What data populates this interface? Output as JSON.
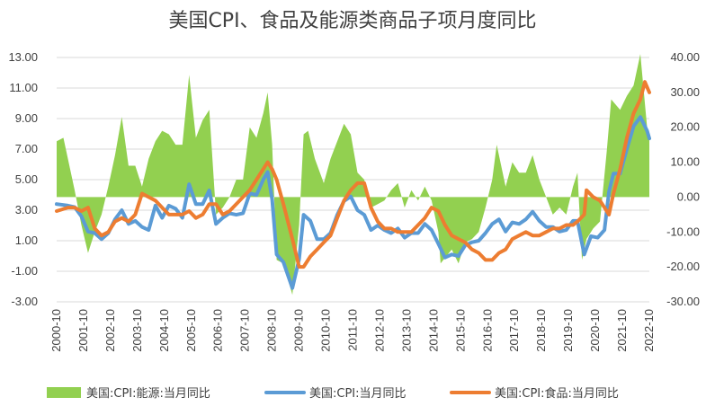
{
  "chart_data": {
    "type": "area+line",
    "title": "美国CPI、食品及能源类商品子项月度同比",
    "x_start": "2000-10",
    "x_end": "2022-10",
    "x_ticks": [
      "2000-10",
      "2001-10",
      "2002-10",
      "2003-10",
      "2004-10",
      "2005-10",
      "2006-10",
      "2007-10",
      "2008-10",
      "2009-10",
      "2010-10",
      "2011-10",
      "2012-10",
      "2013-10",
      "2014-10",
      "2015-10",
      "2016-10",
      "2017-10",
      "2018-10",
      "2019-10",
      "2020-10",
      "2021-10",
      "2022-10"
    ],
    "left_axis": {
      "min": -3,
      "max": 13,
      "step": 2,
      "ticks": [
        "-3.00",
        "-1.00",
        "1.00",
        "3.00",
        "5.00",
        "7.00",
        "9.00",
        "11.00",
        "13.00"
      ]
    },
    "right_axis": {
      "min": -30,
      "max": 40,
      "step": 10,
      "ticks": [
        "-30.00",
        "-20.00",
        "-10.00",
        "0.00",
        "10.00",
        "20.00",
        "30.00",
        "40.00"
      ]
    },
    "grid": "horizontal",
    "legend_position": "bottom",
    "colors": {
      "energy": "#92d050",
      "cpi": "#5b9bd5",
      "food": "#ed7d31"
    },
    "series": [
      {
        "name": "美国:CPI:能源:当月同比",
        "axis": "right",
        "kind": "area",
        "points": [
          [
            "2000-10",
            16
          ],
          [
            "2001-01",
            17
          ],
          [
            "2001-06",
            2
          ],
          [
            "2001-09",
            -8
          ],
          [
            "2001-12",
            -16
          ],
          [
            "2002-03",
            -10
          ],
          [
            "2002-06",
            -5
          ],
          [
            "2002-09",
            3
          ],
          [
            "2002-12",
            12
          ],
          [
            "2003-03",
            23
          ],
          [
            "2003-06",
            9
          ],
          [
            "2003-09",
            9
          ],
          [
            "2003-12",
            3
          ],
          [
            "2004-03",
            11
          ],
          [
            "2004-06",
            16
          ],
          [
            "2004-09",
            19
          ],
          [
            "2004-12",
            18
          ],
          [
            "2005-03",
            15
          ],
          [
            "2005-06",
            15
          ],
          [
            "2005-09",
            35
          ],
          [
            "2005-12",
            17
          ],
          [
            "2006-03",
            22
          ],
          [
            "2006-06",
            25
          ],
          [
            "2006-09",
            -5
          ],
          [
            "2006-12",
            -3
          ],
          [
            "2007-03",
            0
          ],
          [
            "2007-06",
            5
          ],
          [
            "2007-09",
            5
          ],
          [
            "2007-12",
            20
          ],
          [
            "2008-03",
            17
          ],
          [
            "2008-06",
            24
          ],
          [
            "2008-08",
            30
          ],
          [
            "2008-10",
            15
          ],
          [
            "2008-12",
            -18
          ],
          [
            "2009-03",
            -19
          ],
          [
            "2009-07",
            -28
          ],
          [
            "2009-10",
            -8
          ],
          [
            "2009-12",
            18
          ],
          [
            "2010-02",
            19
          ],
          [
            "2010-05",
            11
          ],
          [
            "2010-09",
            4
          ],
          [
            "2010-12",
            11
          ],
          [
            "2011-03",
            16
          ],
          [
            "2011-06",
            21
          ],
          [
            "2011-09",
            18
          ],
          [
            "2011-12",
            7
          ],
          [
            "2012-03",
            5
          ],
          [
            "2012-06",
            -3
          ],
          [
            "2012-09",
            -2
          ],
          [
            "2012-12",
            -1
          ],
          [
            "2013-03",
            2
          ],
          [
            "2013-06",
            4
          ],
          [
            "2013-09",
            -3
          ],
          [
            "2013-12",
            2
          ],
          [
            "2014-03",
            -1
          ],
          [
            "2014-06",
            3
          ],
          [
            "2014-09",
            -1
          ],
          [
            "2014-12",
            -10
          ],
          [
            "2015-01",
            -19
          ],
          [
            "2015-06",
            -15
          ],
          [
            "2015-09",
            -19
          ],
          [
            "2015-12",
            -13
          ],
          [
            "2016-03",
            -12
          ],
          [
            "2016-06",
            -10
          ],
          [
            "2016-09",
            -3
          ],
          [
            "2016-12",
            5
          ],
          [
            "2017-02",
            15
          ],
          [
            "2017-06",
            3
          ],
          [
            "2017-09",
            10
          ],
          [
            "2017-12",
            7
          ],
          [
            "2018-03",
            7
          ],
          [
            "2018-06",
            12
          ],
          [
            "2018-09",
            5
          ],
          [
            "2018-12",
            0
          ],
          [
            "2019-03",
            -5
          ],
          [
            "2019-06",
            -3
          ],
          [
            "2019-09",
            -5
          ],
          [
            "2019-12",
            3
          ],
          [
            "2020-02",
            7
          ],
          [
            "2020-04",
            -18
          ],
          [
            "2020-06",
            -12
          ],
          [
            "2020-09",
            -9
          ],
          [
            "2020-12",
            -7
          ],
          [
            "2021-03",
            13
          ],
          [
            "2021-05",
            28
          ],
          [
            "2021-09",
            25
          ],
          [
            "2021-12",
            29
          ],
          [
            "2022-03",
            32
          ],
          [
            "2022-06",
            41
          ],
          [
            "2022-09",
            20
          ],
          [
            "2022-10",
            18
          ]
        ]
      },
      {
        "name": "美国:CPI:当月同比",
        "axis": "left",
        "kind": "line",
        "points": [
          [
            "2000-10",
            3.4
          ],
          [
            "2001-03",
            3.3
          ],
          [
            "2001-06",
            3.2
          ],
          [
            "2001-09",
            2.6
          ],
          [
            "2001-12",
            1.6
          ],
          [
            "2002-03",
            1.5
          ],
          [
            "2002-06",
            1.1
          ],
          [
            "2002-09",
            1.5
          ],
          [
            "2002-12",
            2.4
          ],
          [
            "2003-03",
            3.0
          ],
          [
            "2003-06",
            2.1
          ],
          [
            "2003-09",
            2.3
          ],
          [
            "2003-12",
            1.9
          ],
          [
            "2004-03",
            1.7
          ],
          [
            "2004-06",
            3.3
          ],
          [
            "2004-09",
            2.5
          ],
          [
            "2004-12",
            3.3
          ],
          [
            "2005-03",
            3.1
          ],
          [
            "2005-06",
            2.5
          ],
          [
            "2005-09",
            4.7
          ],
          [
            "2005-12",
            3.4
          ],
          [
            "2006-03",
            3.4
          ],
          [
            "2006-06",
            4.3
          ],
          [
            "2006-09",
            2.1
          ],
          [
            "2006-12",
            2.5
          ],
          [
            "2007-03",
            2.8
          ],
          [
            "2007-06",
            2.7
          ],
          [
            "2007-09",
            2.8
          ],
          [
            "2007-12",
            4.1
          ],
          [
            "2008-03",
            4.0
          ],
          [
            "2008-06",
            5.0
          ],
          [
            "2008-08",
            5.5
          ],
          [
            "2008-10",
            3.7
          ],
          [
            "2008-12",
            0.1
          ],
          [
            "2009-03",
            -0.4
          ],
          [
            "2009-07",
            -2.1
          ],
          [
            "2009-10",
            -0.2
          ],
          [
            "2009-12",
            2.7
          ],
          [
            "2010-03",
            2.3
          ],
          [
            "2010-06",
            1.1
          ],
          [
            "2010-09",
            1.1
          ],
          [
            "2010-12",
            1.5
          ],
          [
            "2011-03",
            2.7
          ],
          [
            "2011-06",
            3.6
          ],
          [
            "2011-09",
            3.9
          ],
          [
            "2011-12",
            3.0
          ],
          [
            "2012-03",
            2.7
          ],
          [
            "2012-06",
            1.7
          ],
          [
            "2012-09",
            2.0
          ],
          [
            "2012-12",
            1.7
          ],
          [
            "2013-03",
            1.5
          ],
          [
            "2013-06",
            1.8
          ],
          [
            "2013-09",
            1.2
          ],
          [
            "2013-12",
            1.5
          ],
          [
            "2014-03",
            1.5
          ],
          [
            "2014-06",
            2.1
          ],
          [
            "2014-09",
            1.7
          ],
          [
            "2014-12",
            0.8
          ],
          [
            "2015-03",
            -0.1
          ],
          [
            "2015-06",
            0.1
          ],
          [
            "2015-09",
            0.0
          ],
          [
            "2015-12",
            0.7
          ],
          [
            "2016-03",
            0.9
          ],
          [
            "2016-06",
            1.0
          ],
          [
            "2016-09",
            1.5
          ],
          [
            "2016-12",
            2.1
          ],
          [
            "2017-03",
            2.4
          ],
          [
            "2017-06",
            1.6
          ],
          [
            "2017-09",
            2.2
          ],
          [
            "2017-12",
            2.1
          ],
          [
            "2018-03",
            2.4
          ],
          [
            "2018-06",
            2.9
          ],
          [
            "2018-09",
            2.3
          ],
          [
            "2018-12",
            1.9
          ],
          [
            "2019-03",
            1.9
          ],
          [
            "2019-06",
            1.6
          ],
          [
            "2019-09",
            1.7
          ],
          [
            "2019-12",
            2.3
          ],
          [
            "2020-02",
            2.3
          ],
          [
            "2020-05",
            0.1
          ],
          [
            "2020-08",
            1.3
          ],
          [
            "2020-11",
            1.2
          ],
          [
            "2021-02",
            1.7
          ],
          [
            "2021-04",
            4.2
          ],
          [
            "2021-06",
            5.4
          ],
          [
            "2021-09",
            5.4
          ],
          [
            "2021-12",
            7.0
          ],
          [
            "2022-03",
            8.5
          ],
          [
            "2022-06",
            9.1
          ],
          [
            "2022-09",
            8.2
          ],
          [
            "2022-10",
            7.7
          ]
        ]
      },
      {
        "name": "美国:CPI:食品:当月同比",
        "axis": "right",
        "kind": "line",
        "points": [
          [
            "2000-10",
            -4
          ],
          [
            "2001-03",
            -3
          ],
          [
            "2001-06",
            -3
          ],
          [
            "2001-09",
            -4
          ],
          [
            "2001-12",
            -3
          ],
          [
            "2002-03",
            -9
          ],
          [
            "2002-06",
            -11
          ],
          [
            "2002-09",
            -10
          ],
          [
            "2002-12",
            -7
          ],
          [
            "2003-03",
            -6
          ],
          [
            "2003-06",
            -7
          ],
          [
            "2003-09",
            -5
          ],
          [
            "2003-12",
            1
          ],
          [
            "2004-03",
            0
          ],
          [
            "2004-06",
            -1
          ],
          [
            "2004-09",
            -3
          ],
          [
            "2004-12",
            -5
          ],
          [
            "2005-03",
            -5
          ],
          [
            "2005-06",
            -5
          ],
          [
            "2005-09",
            -4
          ],
          [
            "2005-12",
            -6
          ],
          [
            "2006-03",
            -5
          ],
          [
            "2006-06",
            -2
          ],
          [
            "2006-09",
            -2
          ],
          [
            "2006-12",
            -5
          ],
          [
            "2007-03",
            -4
          ],
          [
            "2007-06",
            -2
          ],
          [
            "2007-09",
            0
          ],
          [
            "2007-12",
            2
          ],
          [
            "2008-03",
            5
          ],
          [
            "2008-06",
            8
          ],
          [
            "2008-08",
            10
          ],
          [
            "2008-10",
            8
          ],
          [
            "2008-12",
            5
          ],
          [
            "2009-03",
            -2
          ],
          [
            "2009-07",
            -12
          ],
          [
            "2009-10",
            -20
          ],
          [
            "2009-12",
            -20
          ],
          [
            "2010-03",
            -17
          ],
          [
            "2010-06",
            -15
          ],
          [
            "2010-09",
            -13
          ],
          [
            "2010-12",
            -11
          ],
          [
            "2011-03",
            -6
          ],
          [
            "2011-06",
            -1
          ],
          [
            "2011-09",
            2
          ],
          [
            "2011-12",
            4
          ],
          [
            "2012-03",
            4
          ],
          [
            "2012-06",
            -3
          ],
          [
            "2012-09",
            -7
          ],
          [
            "2012-12",
            -9
          ],
          [
            "2013-03",
            -9
          ],
          [
            "2013-06",
            -10
          ],
          [
            "2013-09",
            -10
          ],
          [
            "2013-12",
            -10
          ],
          [
            "2014-03",
            -8
          ],
          [
            "2014-06",
            -6
          ],
          [
            "2014-09",
            -3
          ],
          [
            "2014-12",
            -4
          ],
          [
            "2015-03",
            -8
          ],
          [
            "2015-06",
            -11
          ],
          [
            "2015-09",
            -12
          ],
          [
            "2015-12",
            -13
          ],
          [
            "2016-03",
            -15
          ],
          [
            "2016-06",
            -16
          ],
          [
            "2016-09",
            -18
          ],
          [
            "2016-12",
            -18
          ],
          [
            "2017-03",
            -16
          ],
          [
            "2017-06",
            -15
          ],
          [
            "2017-09",
            -12
          ],
          [
            "2017-12",
            -11
          ],
          [
            "2018-03",
            -10
          ],
          [
            "2018-06",
            -11
          ],
          [
            "2018-09",
            -11
          ],
          [
            "2018-12",
            -10
          ],
          [
            "2019-03",
            -9
          ],
          [
            "2019-06",
            -9
          ],
          [
            "2019-09",
            -8
          ],
          [
            "2019-12",
            -8
          ],
          [
            "2020-02",
            -7
          ],
          [
            "2020-05",
            -5
          ],
          [
            "2020-06",
            2
          ],
          [
            "2020-09",
            0
          ],
          [
            "2020-12",
            -1
          ],
          [
            "2021-02",
            -3
          ],
          [
            "2021-04",
            -5
          ],
          [
            "2021-06",
            1
          ],
          [
            "2021-09",
            8
          ],
          [
            "2021-12",
            17
          ],
          [
            "2022-03",
            24
          ],
          [
            "2022-06",
            28
          ],
          [
            "2022-08",
            33
          ],
          [
            "2022-10",
            30
          ]
        ]
      }
    ]
  }
}
